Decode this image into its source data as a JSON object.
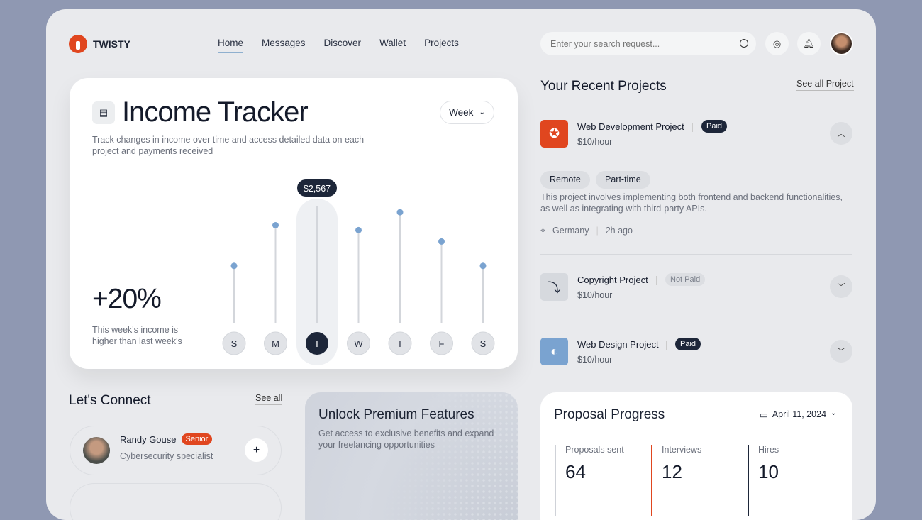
{
  "brand": {
    "name": "TWISTY",
    "color": "#e0461f"
  },
  "nav": {
    "items": [
      "Home",
      "Messages",
      "Discover",
      "Wallet",
      "Projects"
    ],
    "active": "Home"
  },
  "search": {
    "placeholder": "Enter your search request..."
  },
  "income": {
    "title": "Income Tracker",
    "period": "Week",
    "description": "Track changes in income over time and access detailed data on each project and payments received",
    "change": "+20%",
    "change_note": "This week's income is higher than last week's"
  },
  "chart_data": {
    "type": "lollipop",
    "categories": [
      "S",
      "M",
      "T",
      "W",
      "T",
      "F",
      "S"
    ],
    "relative_levels": [
      0.35,
      0.6,
      0.72,
      0.57,
      0.68,
      0.5,
      0.35
    ],
    "selected_index": 2,
    "selected_label": "$2,567",
    "accent": "#7aa3d0"
  },
  "projects": {
    "title": "Your Recent Projects",
    "see_all": "See all Project",
    "items": [
      {
        "name": "Web Development Project",
        "status": "Paid",
        "rate": "$10/hour",
        "icon": "orbit-icon",
        "color": "#e0461f",
        "expanded": true,
        "tags": [
          "Remote",
          "Part-time"
        ],
        "description": "This project involves implementing both frontend and backend functionalities, as well as integrating with third-party APIs.",
        "location": "Germany",
        "time": "2h ago"
      },
      {
        "name": "Copyright Project",
        "status": "Not Paid",
        "rate": "$10/hour",
        "icon": "stamp-icon",
        "color": "#d6d9de",
        "expanded": false
      },
      {
        "name": "Web Design Project",
        "status": "Paid",
        "rate": "$10/hour",
        "icon": "pie-icon",
        "color": "#7aa3d0",
        "expanded": false
      }
    ]
  },
  "connect": {
    "title": "Let's Connect",
    "see_all": "See all",
    "people": [
      {
        "name": "Randy Gouse",
        "level": "Senior",
        "role": "Cybersecurity specialist"
      }
    ]
  },
  "premium": {
    "title": "Unlock Premium Features",
    "description": "Get access to exclusive benefits and expand your freelancing opportunities"
  },
  "proposal": {
    "title": "Proposal Progress",
    "date": "April 11, 2024",
    "stats": [
      {
        "label": "Proposals sent",
        "value": "64",
        "color": "#cfd2d8"
      },
      {
        "label": "Interviews",
        "value": "12",
        "color": "#e0461f"
      },
      {
        "label": "Hires",
        "value": "10",
        "color": "#1d2639"
      }
    ]
  }
}
